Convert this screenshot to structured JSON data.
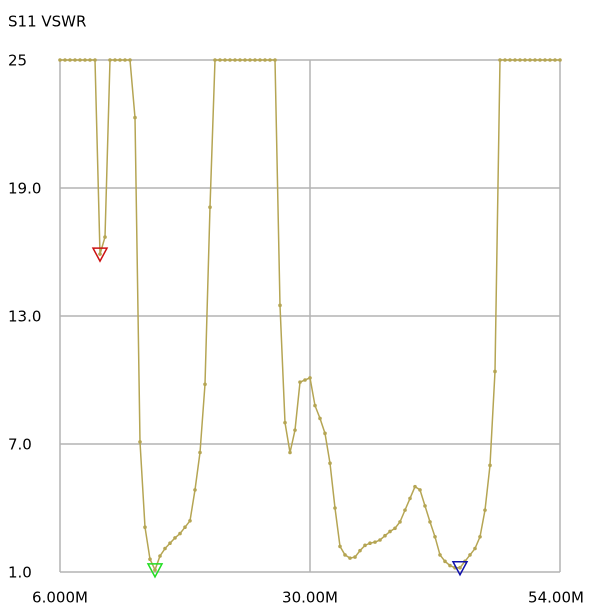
{
  "chart_data": {
    "type": "line",
    "title": "S11 VSWR",
    "x": [
      6,
      6.48,
      6.96,
      7.44,
      7.92,
      8.4,
      8.88,
      9.36,
      9.84,
      10.32,
      10.8,
      11.28,
      11.76,
      12.24,
      12.72,
      13.2,
      13.68,
      14.16,
      14.64,
      15.12,
      15.6,
      16.08,
      16.56,
      17.04,
      17.52,
      18,
      18.48,
      18.96,
      19.44,
      19.92,
      20.4,
      20.88,
      21.36,
      21.84,
      22.32,
      22.8,
      23.28,
      23.76,
      24.24,
      24.72,
      25.2,
      25.68,
      26.16,
      26.64,
      27.12,
      27.6,
      28.08,
      28.56,
      29.04,
      29.52,
      30,
      30.48,
      30.96,
      31.44,
      31.92,
      32.4,
      32.88,
      33.36,
      33.84,
      34.32,
      34.8,
      35.28,
      35.76,
      36.24,
      36.72,
      37.2,
      37.68,
      38.16,
      38.64,
      39.12,
      39.6,
      40.08,
      40.56,
      41.04,
      41.52,
      42,
      42.48,
      42.96,
      43.44,
      43.92,
      44.4,
      44.88,
      45.36,
      45.84,
      46.32,
      46.8,
      47.28,
      47.76,
      48.24,
      48.72,
      49.2,
      49.68,
      50.16,
      50.64,
      51.12,
      51.6,
      52.08,
      52.56,
      53.04,
      53.52,
      54
    ],
    "series": [
      {
        "color": "#b5a553",
        "values": [
          25,
          25,
          25,
          25,
          25,
          25,
          25,
          25,
          15.9,
          16.7,
          25,
          25,
          25,
          25,
          25,
          22.3,
          7.1,
          3.1,
          1.6,
          1.1,
          1.75,
          2.1,
          2.35,
          2.6,
          2.8,
          3.1,
          3.4,
          4.85,
          6.6,
          9.8,
          18.1,
          25,
          25,
          25,
          25,
          25,
          25,
          25,
          25,
          25,
          25,
          25,
          25,
          25,
          13.5,
          8.0,
          6.6,
          7.65,
          9.9,
          10.0,
          10.1,
          8.8,
          8.2,
          7.5,
          6.1,
          4.0,
          2.2,
          1.8,
          1.65,
          1.7,
          2.0,
          2.25,
          2.35,
          2.4,
          2.5,
          2.7,
          2.9,
          3.05,
          3.35,
          3.9,
          4.45,
          5.0,
          4.85,
          4.1,
          3.35,
          2.65,
          1.8,
          1.5,
          1.3,
          1.2,
          1.2,
          1.5,
          1.8,
          2.1,
          2.65,
          3.9,
          6.0,
          10.4,
          25,
          25,
          25,
          25,
          25,
          25,
          25,
          25,
          25,
          25,
          25,
          25,
          25
        ]
      }
    ],
    "markers": [
      {
        "index": 8,
        "color": "#cc1111"
      },
      {
        "index": 19,
        "color": "#22dd22"
      },
      {
        "index": 80,
        "color": "#1111aa"
      }
    ],
    "xlim": [
      6,
      54
    ],
    "xticks": [
      {
        "value": 6,
        "label": "6.000M"
      },
      {
        "value": 30,
        "label": "30.00M"
      },
      {
        "value": 54,
        "label": "54.00M"
      }
    ],
    "ylim": [
      1,
      25
    ],
    "yticks": [
      {
        "value": 1,
        "label": "1.0"
      },
      {
        "value": 7,
        "label": "7.0"
      },
      {
        "value": 13,
        "label": "13.0"
      },
      {
        "value": 19,
        "label": "19.0"
      },
      25
    ],
    "grid": true
  }
}
